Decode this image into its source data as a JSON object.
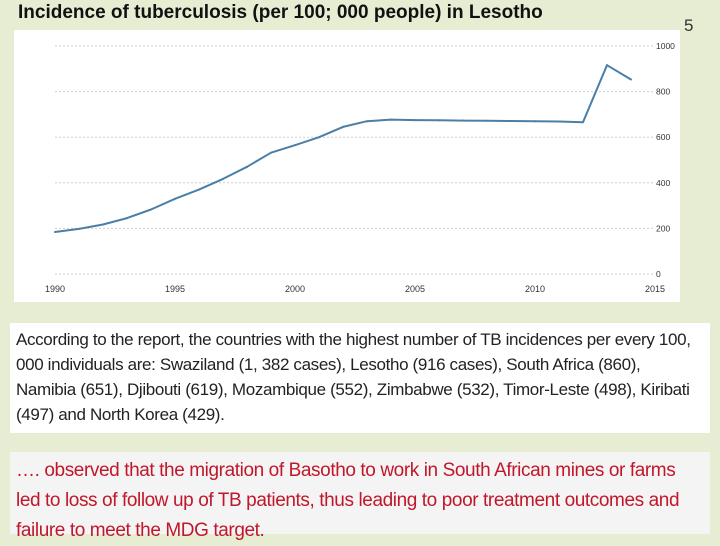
{
  "slide": {
    "title": "Incidence of tuberculosis (per 100; 000 people) in Lesotho",
    "number": "5"
  },
  "chart_data": {
    "type": "line",
    "title": "Incidence of tuberculosis (per 100; 000 people) in Lesotho",
    "xlabel": "",
    "ylabel": "",
    "xlim": [
      1990,
      2015
    ],
    "ylim": [
      0,
      1000
    ],
    "x_ticks": [
      "1990",
      "1995",
      "2000",
      "2005",
      "2010",
      "2015"
    ],
    "y_ticks": [
      "0",
      "200",
      "400",
      "600",
      "800",
      "1000"
    ],
    "y_axis_side": "right",
    "grid": "horizontal dashed",
    "line_color": "#4a7fa8",
    "series": [
      {
        "x": [
          1990,
          1991,
          1992,
          1993,
          1994,
          1995,
          1996,
          1997,
          1998,
          1999,
          2000,
          2001,
          2002,
          2003,
          2004,
          2005,
          2006,
          2007,
          2008,
          2009,
          2010,
          2011,
          2012,
          2013,
          2014
        ],
        "values": [
          184,
          198,
          217,
          245,
          283,
          330,
          370,
          417,
          470,
          532,
          565,
          600,
          645,
          670,
          677,
          675,
          674,
          673,
          672,
          671,
          670,
          669,
          666,
          916,
          853
        ]
      }
    ]
  },
  "captions": {
    "first": "According to the report, the countries with the highest number of TB incidences per every 100, 000 individuals are: Swaziland (1, 382 cases), Lesotho (916 cases), South Africa (860), Namibia (651), Djibouti (619), Mozambique (552), Zimbabwe (532), Timor-Leste (498), Kiribati (497) and North Korea (429).",
    "second": "…. observed that the migration of Basotho to work in South African mines or farms led to loss of follow up of TB patients, thus leading to poor treatment outcomes and failure to meet the MDG target."
  }
}
